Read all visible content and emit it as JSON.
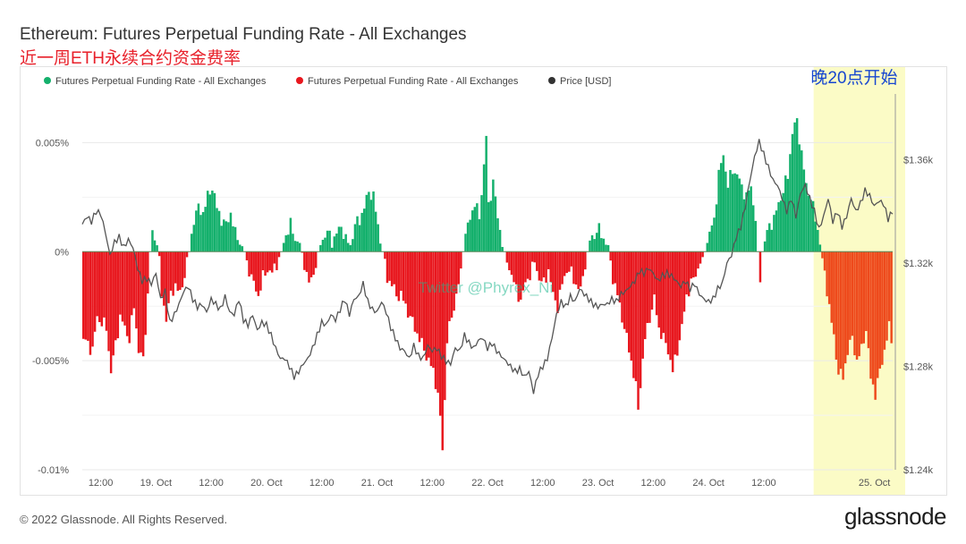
{
  "header": {
    "title": "Ethereum: Futures Perpetual Funding Rate - All Exchanges",
    "subtitle": "近一周ETH永续合约资金费率"
  },
  "footer": {
    "copyright": "© 2022 Glassnode. All Rights Reserved.",
    "brand": "glassnode"
  },
  "colors": {
    "positive": "#14b06c",
    "negative": "#e8171e",
    "negative_late": "#ee4a1c",
    "price": "#555555",
    "highlight": "#fbfbc6",
    "grid": "#e9e9e9"
  },
  "chart_data": {
    "type": "bar",
    "title": "Ethereum: Futures Perpetual Funding Rate - All Exchanges",
    "legend": [
      {
        "name": "Futures Perpetual Funding Rate - All Exchanges",
        "color": "#14b06c"
      },
      {
        "name": "Futures Perpetual Funding Rate - All Exchanges",
        "color": "#e8171e"
      },
      {
        "name": "Price [USD]",
        "color": "#333333"
      }
    ],
    "legend_position": "top-left",
    "x_ticks": [
      "12:00",
      "19. Oct",
      "12:00",
      "20. Oct",
      "12:00",
      "21. Oct",
      "12:00",
      "22. Oct",
      "12:00",
      "23. Oct",
      "12:00",
      "24. Oct",
      "12:00",
      "25. Oct"
    ],
    "x_range_hours": [
      0,
      176
    ],
    "y_left": {
      "ticks": [
        "0.005%",
        "0%",
        "-0.005%",
        "-0.01%"
      ],
      "range": [
        -0.01,
        0.006
      ],
      "unit": "%"
    },
    "y_right": {
      "ticks": [
        "$1.36k",
        "$1.32k",
        "$1.28k",
        "$1.24k"
      ],
      "range": [
        1240,
        1375
      ],
      "unit": "USD"
    },
    "grid": true,
    "annotation": {
      "text": "晚20点开始",
      "start_hour": 160,
      "end_hour": 176
    },
    "watermark": "Twitter @Phyrex_Ni",
    "funding_rate_keyframes": [
      [
        0,
        -0.004
      ],
      [
        2,
        -0.0045
      ],
      [
        3,
        -0.003
      ],
      [
        5,
        -0.0035
      ],
      [
        6,
        -0.0055
      ],
      [
        8,
        -0.003
      ],
      [
        10,
        -0.004
      ],
      [
        11,
        -0.0025
      ],
      [
        12,
        -0.0045
      ],
      [
        13,
        -0.005
      ],
      [
        14,
        -0.002
      ],
      [
        14.5,
        0
      ],
      [
        15,
        0.0008
      ],
      [
        16,
        0.0005
      ],
      [
        16.5,
        -0.0005
      ],
      [
        17,
        -0.002
      ],
      [
        18,
        -0.003
      ],
      [
        19,
        -0.002
      ],
      [
        20,
        -0.0015
      ],
      [
        21,
        -0.002
      ],
      [
        22,
        -0.001
      ],
      [
        23,
        0
      ],
      [
        24,
        0.0015
      ],
      [
        25,
        0.002
      ],
      [
        26,
        0.0018
      ],
      [
        27,
        0.0025
      ],
      [
        28,
        0.003
      ],
      [
        29,
        0.002
      ],
      [
        30,
        0.0015
      ],
      [
        31,
        0.0012
      ],
      [
        32,
        0.0018
      ],
      [
        33,
        0.0008
      ],
      [
        34,
        0.0005
      ],
      [
        35,
        0
      ],
      [
        36,
        -0.0008
      ],
      [
        37,
        -0.0015
      ],
      [
        38,
        -0.002
      ],
      [
        39,
        -0.0012
      ],
      [
        40,
        -0.0008
      ],
      [
        41,
        -0.001
      ],
      [
        42,
        -0.0005
      ],
      [
        43,
        0
      ],
      [
        44,
        0.0008
      ],
      [
        45,
        0.0012
      ],
      [
        46,
        0.0006
      ],
      [
        47,
        0.0004
      ],
      [
        48,
        -0.0005
      ],
      [
        49,
        -0.0015
      ],
      [
        50,
        -0.001
      ],
      [
        51,
        0
      ],
      [
        52,
        0.0006
      ],
      [
        53,
        0.0009
      ],
      [
        54,
        0.0005
      ],
      [
        55,
        0.0008
      ],
      [
        56,
        0.0012
      ],
      [
        57,
        0.0005
      ],
      [
        58,
        0.0003
      ],
      [
        59,
        0.0012
      ],
      [
        60,
        0.0015
      ],
      [
        61,
        0.002
      ],
      [
        62,
        0.0028
      ],
      [
        63,
        0.0025
      ],
      [
        64,
        0.0012
      ],
      [
        65,
        0
      ],
      [
        66,
        -0.0012
      ],
      [
        67,
        -0.0015
      ],
      [
        68,
        -0.002
      ],
      [
        69,
        -0.002
      ],
      [
        70,
        -0.0025
      ],
      [
        71,
        -0.003
      ],
      [
        72,
        -0.0035
      ],
      [
        73,
        -0.004
      ],
      [
        74,
        -0.0045
      ],
      [
        75,
        -0.005
      ],
      [
        76,
        -0.0055
      ],
      [
        77,
        -0.0065
      ],
      [
        78,
        -0.009
      ],
      [
        78.5,
        -0.0068
      ],
      [
        79,
        -0.004
      ],
      [
        80,
        -0.003
      ],
      [
        81,
        -0.002
      ],
      [
        82,
        -0.001
      ],
      [
        82.5,
        0
      ],
      [
        83,
        0.0008
      ],
      [
        84,
        0.0015
      ],
      [
        85,
        0.0023
      ],
      [
        86,
        0.0015
      ],
      [
        87,
        0.004
      ],
      [
        87.5,
        0.0053
      ],
      [
        88,
        0.002
      ],
      [
        89,
        0.0033
      ],
      [
        90,
        0.0015
      ],
      [
        91,
        0.0005
      ],
      [
        91.5,
        0
      ],
      [
        92,
        -0.0005
      ],
      [
        93,
        -0.001
      ],
      [
        94,
        -0.0018
      ],
      [
        95,
        -0.0022
      ],
      [
        96,
        -0.0015
      ],
      [
        97,
        -0.001
      ],
      [
        98,
        -0.0005
      ],
      [
        99,
        -0.0012
      ],
      [
        100,
        -0.0015
      ],
      [
        101,
        -0.0008
      ],
      [
        102,
        -0.002
      ],
      [
        103,
        -0.0025
      ],
      [
        104,
        -0.0015
      ],
      [
        105,
        -0.0008
      ],
      [
        106,
        -0.001
      ],
      [
        107,
        -0.0015
      ],
      [
        108,
        -0.0018
      ],
      [
        109,
        -0.0005
      ],
      [
        110,
        0.0005
      ],
      [
        111,
        0.0008
      ],
      [
        112,
        0.001
      ],
      [
        113,
        0.0006
      ],
      [
        114,
        0.0003
      ],
      [
        115,
        -0.0012
      ],
      [
        116,
        -0.002
      ],
      [
        117,
        -0.003
      ],
      [
        118,
        -0.004
      ],
      [
        119,
        -0.005
      ],
      [
        120,
        -0.0062
      ],
      [
        120.5,
        -0.0073
      ],
      [
        121,
        -0.006
      ],
      [
        122,
        -0.004
      ],
      [
        123,
        -0.003
      ],
      [
        124,
        -0.0022
      ],
      [
        125,
        -0.0035
      ],
      [
        126,
        -0.004
      ],
      [
        127,
        -0.0045
      ],
      [
        128,
        -0.0055
      ],
      [
        129,
        -0.0045
      ],
      [
        130,
        -0.0035
      ],
      [
        131,
        -0.002
      ],
      [
        132,
        -0.0015
      ],
      [
        133,
        -0.001
      ],
      [
        134,
        -0.0005
      ],
      [
        135,
        0
      ],
      [
        136,
        0.0008
      ],
      [
        137,
        0.0015
      ],
      [
        138,
        0.0035
      ],
      [
        139,
        0.0045
      ],
      [
        140,
        0.003
      ],
      [
        141,
        0.0038
      ],
      [
        142,
        0.0035
      ],
      [
        143,
        0.003
      ],
      [
        144,
        0.0025
      ],
      [
        145,
        0.003
      ],
      [
        146,
        0.0015
      ],
      [
        146.5,
        0
      ],
      [
        147,
        -0.0012
      ],
      [
        147.5,
        0
      ],
      [
        148,
        0.0005
      ],
      [
        149,
        0.0012
      ],
      [
        150,
        0.0015
      ],
      [
        151,
        0.0022
      ],
      [
        152,
        0.0028
      ],
      [
        153,
        0.0035
      ],
      [
        154,
        0.0055
      ],
      [
        155,
        0.006
      ],
      [
        156,
        0.0045
      ],
      [
        157,
        0.003
      ],
      [
        158,
        0.0025
      ],
      [
        159,
        0.0015
      ],
      [
        160,
        0.0005
      ],
      [
        160.5,
        -0.0005
      ],
      [
        161,
        -0.001
      ],
      [
        162,
        -0.0025
      ],
      [
        163,
        -0.004
      ],
      [
        164,
        -0.0055
      ],
      [
        165,
        -0.0058
      ],
      [
        166,
        -0.0045
      ],
      [
        167,
        -0.004
      ],
      [
        168,
        -0.005
      ],
      [
        169,
        -0.0045
      ],
      [
        170,
        -0.0035
      ],
      [
        171,
        -0.0058
      ],
      [
        172,
        -0.0065
      ],
      [
        173,
        -0.0055
      ],
      [
        174,
        -0.0045
      ],
      [
        175,
        -0.0035
      ],
      [
        176,
        -0.0045
      ]
    ],
    "price_keyframes": [
      [
        0,
        1335
      ],
      [
        1,
        1338
      ],
      [
        2,
        1336
      ],
      [
        3,
        1340
      ],
      [
        4,
        1339
      ],
      [
        5,
        1332
      ],
      [
        6,
        1323
      ],
      [
        7,
        1328
      ],
      [
        8,
        1330
      ],
      [
        9,
        1326
      ],
      [
        10,
        1329
      ],
      [
        11,
        1326
      ],
      [
        12,
        1318
      ],
      [
        13,
        1313
      ],
      [
        14,
        1314
      ],
      [
        15,
        1312
      ],
      [
        16,
        1316
      ],
      [
        17,
        1306
      ],
      [
        18,
        1309
      ],
      [
        19,
        1297
      ],
      [
        20,
        1300
      ],
      [
        21,
        1304
      ],
      [
        22,
        1309
      ],
      [
        23,
        1311
      ],
      [
        24,
        1306
      ],
      [
        25,
        1303
      ],
      [
        26,
        1304
      ],
      [
        27,
        1301
      ],
      [
        28,
        1306
      ],
      [
        29,
        1304
      ],
      [
        30,
        1302
      ],
      [
        31,
        1307
      ],
      [
        32,
        1301
      ],
      [
        33,
        1300
      ],
      [
        34,
        1306
      ],
      [
        35,
        1298
      ],
      [
        36,
        1296
      ],
      [
        37,
        1300
      ],
      [
        38,
        1294
      ],
      [
        39,
        1297
      ],
      [
        40,
        1296
      ],
      [
        41,
        1292
      ],
      [
        42,
        1287
      ],
      [
        43,
        1283
      ],
      [
        44,
        1283
      ],
      [
        45,
        1280
      ],
      [
        46,
        1276
      ],
      [
        47,
        1278
      ],
      [
        48,
        1281
      ],
      [
        49,
        1283
      ],
      [
        50,
        1287
      ],
      [
        51,
        1292
      ],
      [
        52,
        1297
      ],
      [
        53,
        1296
      ],
      [
        54,
        1300
      ],
      [
        55,
        1298
      ],
      [
        56,
        1302
      ],
      [
        57,
        1306
      ],
      [
        58,
        1300
      ],
      [
        59,
        1306
      ],
      [
        60,
        1307
      ],
      [
        61,
        1312
      ],
      [
        62,
        1305
      ],
      [
        63,
        1302
      ],
      [
        64,
        1301
      ],
      [
        65,
        1305
      ],
      [
        66,
        1301
      ],
      [
        67,
        1295
      ],
      [
        68,
        1291
      ],
      [
        69,
        1287
      ],
      [
        70,
        1286
      ],
      [
        71,
        1283
      ],
      [
        72,
        1288
      ],
      [
        73,
        1284
      ],
      [
        74,
        1283
      ],
      [
        75,
        1288
      ],
      [
        76,
        1286
      ],
      [
        77,
        1287
      ],
      [
        78,
        1284
      ],
      [
        79,
        1282
      ],
      [
        80,
        1281
      ],
      [
        81,
        1287
      ],
      [
        82,
        1286
      ],
      [
        83,
        1292
      ],
      [
        84,
        1289
      ],
      [
        85,
        1287
      ],
      [
        86,
        1290
      ],
      [
        87,
        1291
      ],
      [
        88,
        1287
      ],
      [
        89,
        1289
      ],
      [
        90,
        1286
      ],
      [
        91,
        1284
      ],
      [
        92,
        1282
      ],
      [
        93,
        1280
      ],
      [
        94,
        1278
      ],
      [
        95,
        1279
      ],
      [
        96,
        1276
      ],
      [
        97,
        1278
      ],
      [
        98,
        1270
      ],
      [
        99,
        1277
      ],
      [
        100,
        1280
      ],
      [
        101,
        1283
      ],
      [
        102,
        1291
      ],
      [
        103,
        1300
      ],
      [
        104,
        1305
      ],
      [
        105,
        1303
      ],
      [
        106,
        1307
      ],
      [
        107,
        1305
      ],
      [
        108,
        1310
      ],
      [
        109,
        1308
      ],
      [
        110,
        1306
      ],
      [
        111,
        1304
      ],
      [
        112,
        1303
      ],
      [
        113,
        1304
      ],
      [
        114,
        1304
      ],
      [
        115,
        1306
      ],
      [
        116,
        1305
      ],
      [
        117,
        1308
      ],
      [
        118,
        1309
      ],
      [
        119,
        1311
      ],
      [
        120,
        1313
      ],
      [
        121,
        1317
      ],
      [
        122,
        1316
      ],
      [
        123,
        1318
      ],
      [
        124,
        1316
      ],
      [
        125,
        1313
      ],
      [
        126,
        1315
      ],
      [
        127,
        1316
      ],
      [
        128,
        1315
      ],
      [
        129,
        1313
      ],
      [
        130,
        1311
      ],
      [
        131,
        1313
      ],
      [
        132,
        1310
      ],
      [
        133,
        1312
      ],
      [
        134,
        1308
      ],
      [
        135,
        1306
      ],
      [
        136,
        1305
      ],
      [
        137,
        1306
      ],
      [
        138,
        1310
      ],
      [
        139,
        1312
      ],
      [
        140,
        1320
      ],
      [
        141,
        1323
      ],
      [
        142,
        1330
      ],
      [
        143,
        1334
      ],
      [
        144,
        1342
      ],
      [
        145,
        1352
      ],
      [
        146,
        1361
      ],
      [
        147,
        1367
      ],
      [
        148,
        1362
      ],
      [
        149,
        1357
      ],
      [
        150,
        1352
      ],
      [
        151,
        1350
      ],
      [
        152,
        1345
      ],
      [
        153,
        1340
      ],
      [
        154,
        1345
      ],
      [
        155,
        1338
      ],
      [
        156,
        1347
      ],
      [
        157,
        1350
      ],
      [
        158,
        1345
      ],
      [
        159,
        1340
      ],
      [
        160,
        1333
      ],
      [
        161,
        1338
      ],
      [
        162,
        1345
      ],
      [
        163,
        1336
      ],
      [
        164,
        1340
      ],
      [
        165,
        1334
      ],
      [
        166,
        1338
      ],
      [
        167,
        1345
      ],
      [
        168,
        1340
      ],
      [
        169,
        1343
      ],
      [
        170,
        1348
      ],
      [
        171,
        1346
      ],
      [
        172,
        1342
      ],
      [
        173,
        1344
      ],
      [
        174,
        1343
      ],
      [
        175,
        1337
      ],
      [
        176,
        1340
      ]
    ]
  }
}
